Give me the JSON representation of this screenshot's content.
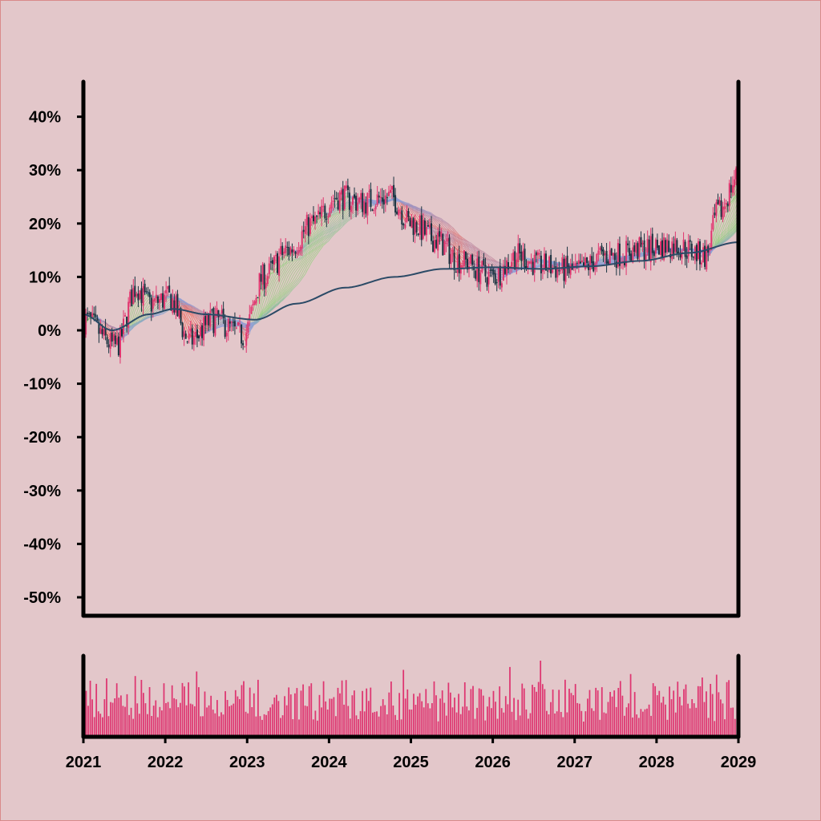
{
  "colors": {
    "background": "#e3c7ca",
    "up_candle": "#e0356e",
    "down_candle": "#18323f",
    "long_ma": "#2b4a66",
    "volume": "#de3570",
    "ribbon_up": "#8fd17a",
    "ribbon_mid": "#8f9fd8",
    "ribbon_down": "#f25a4a"
  },
  "chart_data": [
    {
      "type": "candlestick",
      "title": "",
      "xlabel": "",
      "ylabel": "",
      "ylim": [
        -0.55,
        0.47
      ],
      "y_ticks": [
        0.4,
        0.3,
        0.2,
        0.1,
        0.0,
        -0.1,
        -0.2,
        -0.3,
        -0.4,
        -0.5
      ],
      "y_tick_labels": [
        "40%",
        "30%",
        "20%",
        "10%",
        "0%",
        "-10%",
        "-20%",
        "-30%",
        "-40%",
        "-50%"
      ],
      "x_range": [
        2021.0,
        2029.0
      ],
      "x_ticks": [
        2021,
        2022,
        2023,
        2024,
        2025,
        2026,
        2027,
        2028,
        2029
      ],
      "x_tick_labels": [
        "2021",
        "2022",
        "2023",
        "2024",
        "2025",
        "2026",
        "2027",
        "2028",
        "2029"
      ],
      "grid": false,
      "trend_keypoints": {
        "x": [
          2021.0,
          2021.4,
          2021.65,
          2021.8,
          2022.05,
          2022.3,
          2022.6,
          2022.95,
          2023.2,
          2023.5,
          2023.8,
          2024.1,
          2024.4,
          2024.75,
          2025.0,
          2025.3,
          2025.6,
          2026.0,
          2026.3,
          2026.6,
          2027.0,
          2027.4,
          2027.8,
          2028.2,
          2028.6,
          2028.75,
          2029.0
        ],
        "y": [
          0.02,
          -0.03,
          0.08,
          0.05,
          0.06,
          -0.02,
          0.02,
          -0.01,
          0.1,
          0.15,
          0.2,
          0.25,
          0.24,
          0.25,
          0.2,
          0.17,
          0.13,
          0.1,
          0.14,
          0.12,
          0.11,
          0.14,
          0.15,
          0.16,
          0.14,
          0.22,
          0.29
        ]
      },
      "long_ma_keypoints": {
        "x": [
          2021.0,
          2021.35,
          2021.8,
          2022.1,
          2022.5,
          2023.1,
          2023.6,
          2024.2,
          2024.8,
          2025.4,
          2026.0,
          2026.6,
          2027.2,
          2027.8,
          2028.4,
          2029.0
        ],
        "y": [
          0.03,
          0.0,
          0.03,
          0.04,
          0.03,
          0.02,
          0.05,
          0.08,
          0.1,
          0.115,
          0.118,
          0.115,
          0.12,
          0.13,
          0.145,
          0.165
        ]
      }
    },
    {
      "type": "bar",
      "title": "",
      "xlabel": "",
      "ylabel": "",
      "series": "volume",
      "bar_count": 320,
      "ylim": [
        0,
        1
      ]
    }
  ]
}
